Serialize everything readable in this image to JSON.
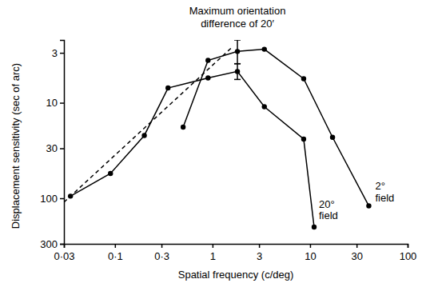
{
  "chart_data": {
    "type": "line",
    "log": true,
    "x_label": "Spatial frequency (c/deg)",
    "y_label": "Displacement sensitivity (sec of arc)",
    "annotation": "Maximum orientation\ndifference of 20′",
    "xlim": [
      0.03,
      100
    ],
    "xticks": [
      {
        "value": 0.03,
        "label": "0·03"
      },
      {
        "value": 0.1,
        "label": "0·1"
      },
      {
        "value": 0.3,
        "label": "0·3"
      },
      1,
      3,
      10,
      30,
      100
    ],
    "ylim": [
      300,
      2.2
    ],
    "yticks": [
      3,
      10,
      30,
      100,
      300
    ],
    "series": [
      {
        "name": "20° field",
        "color": "#000000",
        "marker": "circle",
        "line_style": "solid",
        "x": [
          0.035,
          0.09,
          0.2,
          0.35,
          0.9,
          1.8,
          3.4,
          8.6,
          11
        ],
        "values": [
          95,
          55,
          22,
          7,
          5.5,
          4.7,
          11,
          24,
          200
        ],
        "error_bars": [
          null,
          null,
          null,
          null,
          null,
          [
            3.9,
            5.7
          ],
          null,
          null,
          null
        ]
      },
      {
        "name": "2° field",
        "color": "#000000",
        "marker": "circle",
        "line_style": "solid",
        "x": [
          0.5,
          0.9,
          1.8,
          3.4,
          8.6,
          17,
          40
        ],
        "values": [
          18,
          3.6,
          2.9,
          2.75,
          5.6,
          23,
          120
        ],
        "error_bars": [
          null,
          null,
          [
            2.2,
            3.9
          ],
          null,
          null,
          null,
          null
        ]
      },
      {
        "color": "#000000",
        "marker": "none",
        "line_style": "dashed",
        "x": [
          0.03,
          1.6
        ],
        "values": [
          110,
          2.6
        ]
      }
    ]
  }
}
